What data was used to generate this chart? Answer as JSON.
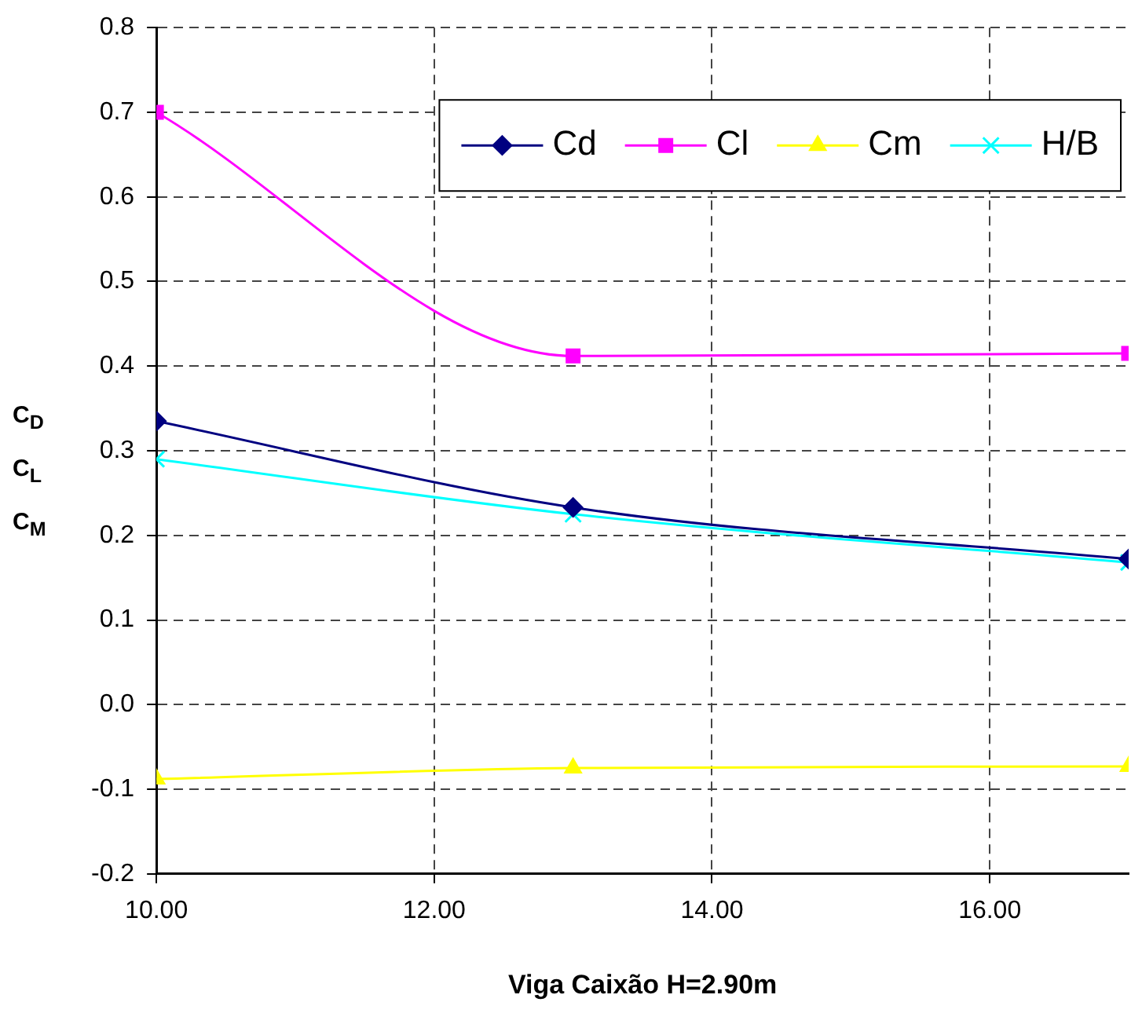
{
  "chart_data": {
    "type": "line",
    "xlabel": "Viga Caixão H=2.90m",
    "ylabel": "C$_{D}$\nC$_{L}$\nC$_{M}$",
    "x": [
      10,
      13,
      17
    ],
    "xlim": [
      10,
      17
    ],
    "xticks": [
      {
        "value": 10,
        "label": "10.00"
      },
      {
        "value": 12,
        "label": "12.00"
      },
      {
        "value": 14,
        "label": "14.00"
      },
      {
        "value": 16,
        "label": "16.00"
      }
    ],
    "ylim": [
      -0.2,
      0.8
    ],
    "yticks": [
      {
        "value": -0.2,
        "label": "-0.2"
      },
      {
        "value": -0.1,
        "label": "-0.1"
      },
      {
        "value": 0,
        "label": "0.0"
      },
      {
        "value": 0.1,
        "label": "0.1"
      },
      {
        "value": 0.2,
        "label": "0.2"
      },
      {
        "value": 0.3,
        "label": "0.3"
      },
      {
        "value": 0.4,
        "label": "0.4"
      },
      {
        "value": 0.5,
        "label": "0.5"
      },
      {
        "value": 0.6,
        "label": "0.6"
      },
      {
        "value": 0.7,
        "label": "0.7"
      },
      {
        "value": 0.8,
        "label": "0.8"
      }
    ],
    "grid": true,
    "legend": "top right",
    "line_style": "solid",
    "series": [
      {
        "name": "Cd",
        "color": "#000080",
        "marker": "diamond",
        "values": [
          0.335,
          0.233,
          0.172
        ]
      },
      {
        "name": "Cl",
        "color": "#ff00ff",
        "marker": "square",
        "values": [
          0.7,
          0.412,
          0.415
        ]
      },
      {
        "name": "Cm",
        "color": "#ffff00",
        "marker": "triangle",
        "values": [
          -0.088,
          -0.075,
          -0.073
        ]
      },
      {
        "name": "H/B",
        "color": "#00ffff",
        "marker": "cross",
        "values": [
          0.29,
          0.225,
          0.168
        ]
      }
    ]
  }
}
